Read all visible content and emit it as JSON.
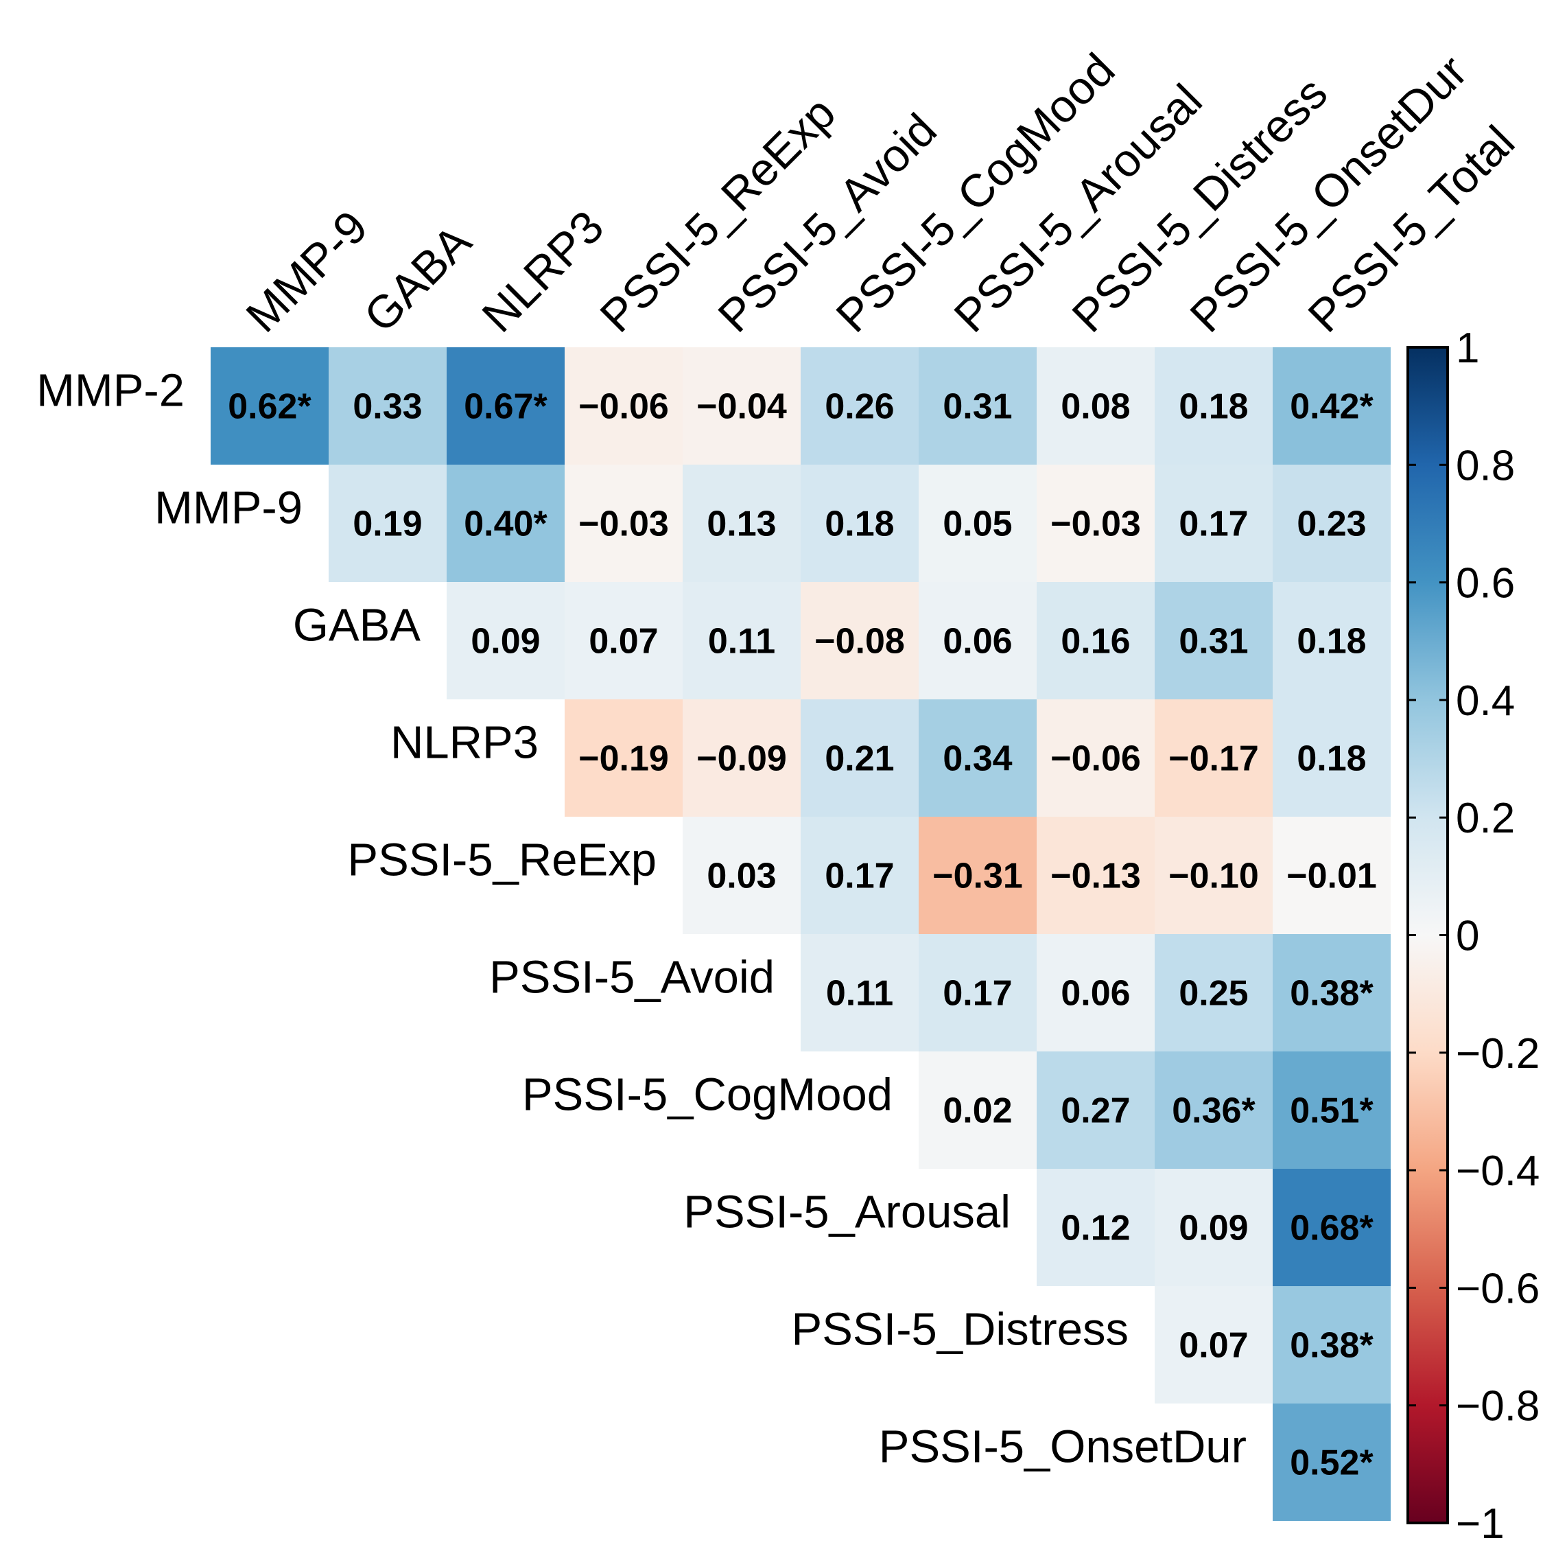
{
  "chart_data": {
    "type": "heatmap",
    "subtype": "correlation-upper-triangle",
    "rows": [
      "MMP-2",
      "MMP-9",
      "GABA",
      "NLRP3",
      "PSSI-5_ReExp",
      "PSSI-5_Avoid",
      "PSSI-5_CogMood",
      "PSSI-5_Arousal",
      "PSSI-5_Distress",
      "PSSI-5_OnsetDur"
    ],
    "columns": [
      "MMP-9",
      "GABA",
      "NLRP3",
      "PSSI-5_ReExp",
      "PSSI-5_Avoid",
      "PSSI-5_CogMood",
      "PSSI-5_Arousal",
      "PSSI-5_Distress",
      "PSSI-5_OnsetDur",
      "PSSI-5_Total"
    ],
    "values": [
      [
        0.62,
        0.33,
        0.67,
        -0.06,
        -0.04,
        0.26,
        0.31,
        0.08,
        0.18,
        0.42
      ],
      [
        null,
        0.19,
        0.4,
        -0.03,
        0.13,
        0.18,
        0.05,
        -0.03,
        0.17,
        0.23
      ],
      [
        null,
        null,
        0.09,
        0.07,
        0.11,
        -0.08,
        0.06,
        0.16,
        0.31,
        0.18
      ],
      [
        null,
        null,
        null,
        -0.19,
        -0.09,
        0.21,
        0.34,
        -0.06,
        -0.17,
        0.18
      ],
      [
        null,
        null,
        null,
        null,
        0.03,
        0.17,
        -0.31,
        -0.13,
        -0.1,
        -0.01
      ],
      [
        null,
        null,
        null,
        null,
        null,
        0.11,
        0.17,
        0.06,
        0.25,
        0.38
      ],
      [
        null,
        null,
        null,
        null,
        null,
        null,
        0.02,
        0.27,
        0.36,
        0.51
      ],
      [
        null,
        null,
        null,
        null,
        null,
        null,
        null,
        0.12,
        0.09,
        0.68
      ],
      [
        null,
        null,
        null,
        null,
        null,
        null,
        null,
        null,
        0.07,
        0.38
      ],
      [
        null,
        null,
        null,
        null,
        null,
        null,
        null,
        null,
        null,
        0.52
      ]
    ],
    "labels": [
      [
        "0.62*",
        "0.33",
        "0.67*",
        "−0.06",
        "−0.04",
        "0.26",
        "0.31",
        "0.08",
        "0.18",
        "0.42*"
      ],
      [
        null,
        "0.19",
        "0.40*",
        "−0.03",
        "0.13",
        "0.18",
        "0.05",
        "−0.03",
        "0.17",
        "0.23"
      ],
      [
        null,
        null,
        "0.09",
        "0.07",
        "0.11",
        "−0.08",
        "0.06",
        "0.16",
        "0.31",
        "0.18"
      ],
      [
        null,
        null,
        null,
        "−0.19",
        "−0.09",
        "0.21",
        "0.34",
        "−0.06",
        "−0.17",
        "0.18"
      ],
      [
        null,
        null,
        null,
        null,
        "0.03",
        "0.17",
        "−0.31",
        "−0.13",
        "−0.10",
        "−0.01"
      ],
      [
        null,
        null,
        null,
        null,
        null,
        "0.11",
        "0.17",
        "0.06",
        "0.25",
        "0.38*"
      ],
      [
        null,
        null,
        null,
        null,
        null,
        null,
        "0.02",
        "0.27",
        "0.36*",
        "0.51*"
      ],
      [
        null,
        null,
        null,
        null,
        null,
        null,
        null,
        "0.12",
        "0.09",
        "0.68*"
      ],
      [
        null,
        null,
        null,
        null,
        null,
        null,
        null,
        null,
        "0.07",
        "0.38*"
      ],
      [
        null,
        null,
        null,
        null,
        null,
        null,
        null,
        null,
        null,
        "0.52*"
      ]
    ],
    "colorbar": {
      "range": [
        -1,
        1
      ],
      "ticks": [
        1,
        0.8,
        0.6,
        0.4,
        0.2,
        0,
        -0.2,
        -0.4,
        -0.6,
        -0.8,
        -1
      ],
      "tick_labels": [
        "1",
        "0.8",
        "0.6",
        "0.4",
        "0.2",
        "0",
        "−0.2",
        "−0.4",
        "−0.6",
        "−0.8",
        "−1"
      ],
      "colors": {
        "-1": "#67001f",
        "-0.8": "#b2182b",
        "-0.6": "#d6604d",
        "-0.4": "#f4a582",
        "-0.2": "#fddbc7",
        "0": "#f7f7f7",
        "0.2": "#d1e5f0",
        "0.4": "#92c5de",
        "0.6": "#4393c3",
        "0.8": "#2166ac",
        "1": "#053061"
      },
      "placement": "right"
    }
  }
}
